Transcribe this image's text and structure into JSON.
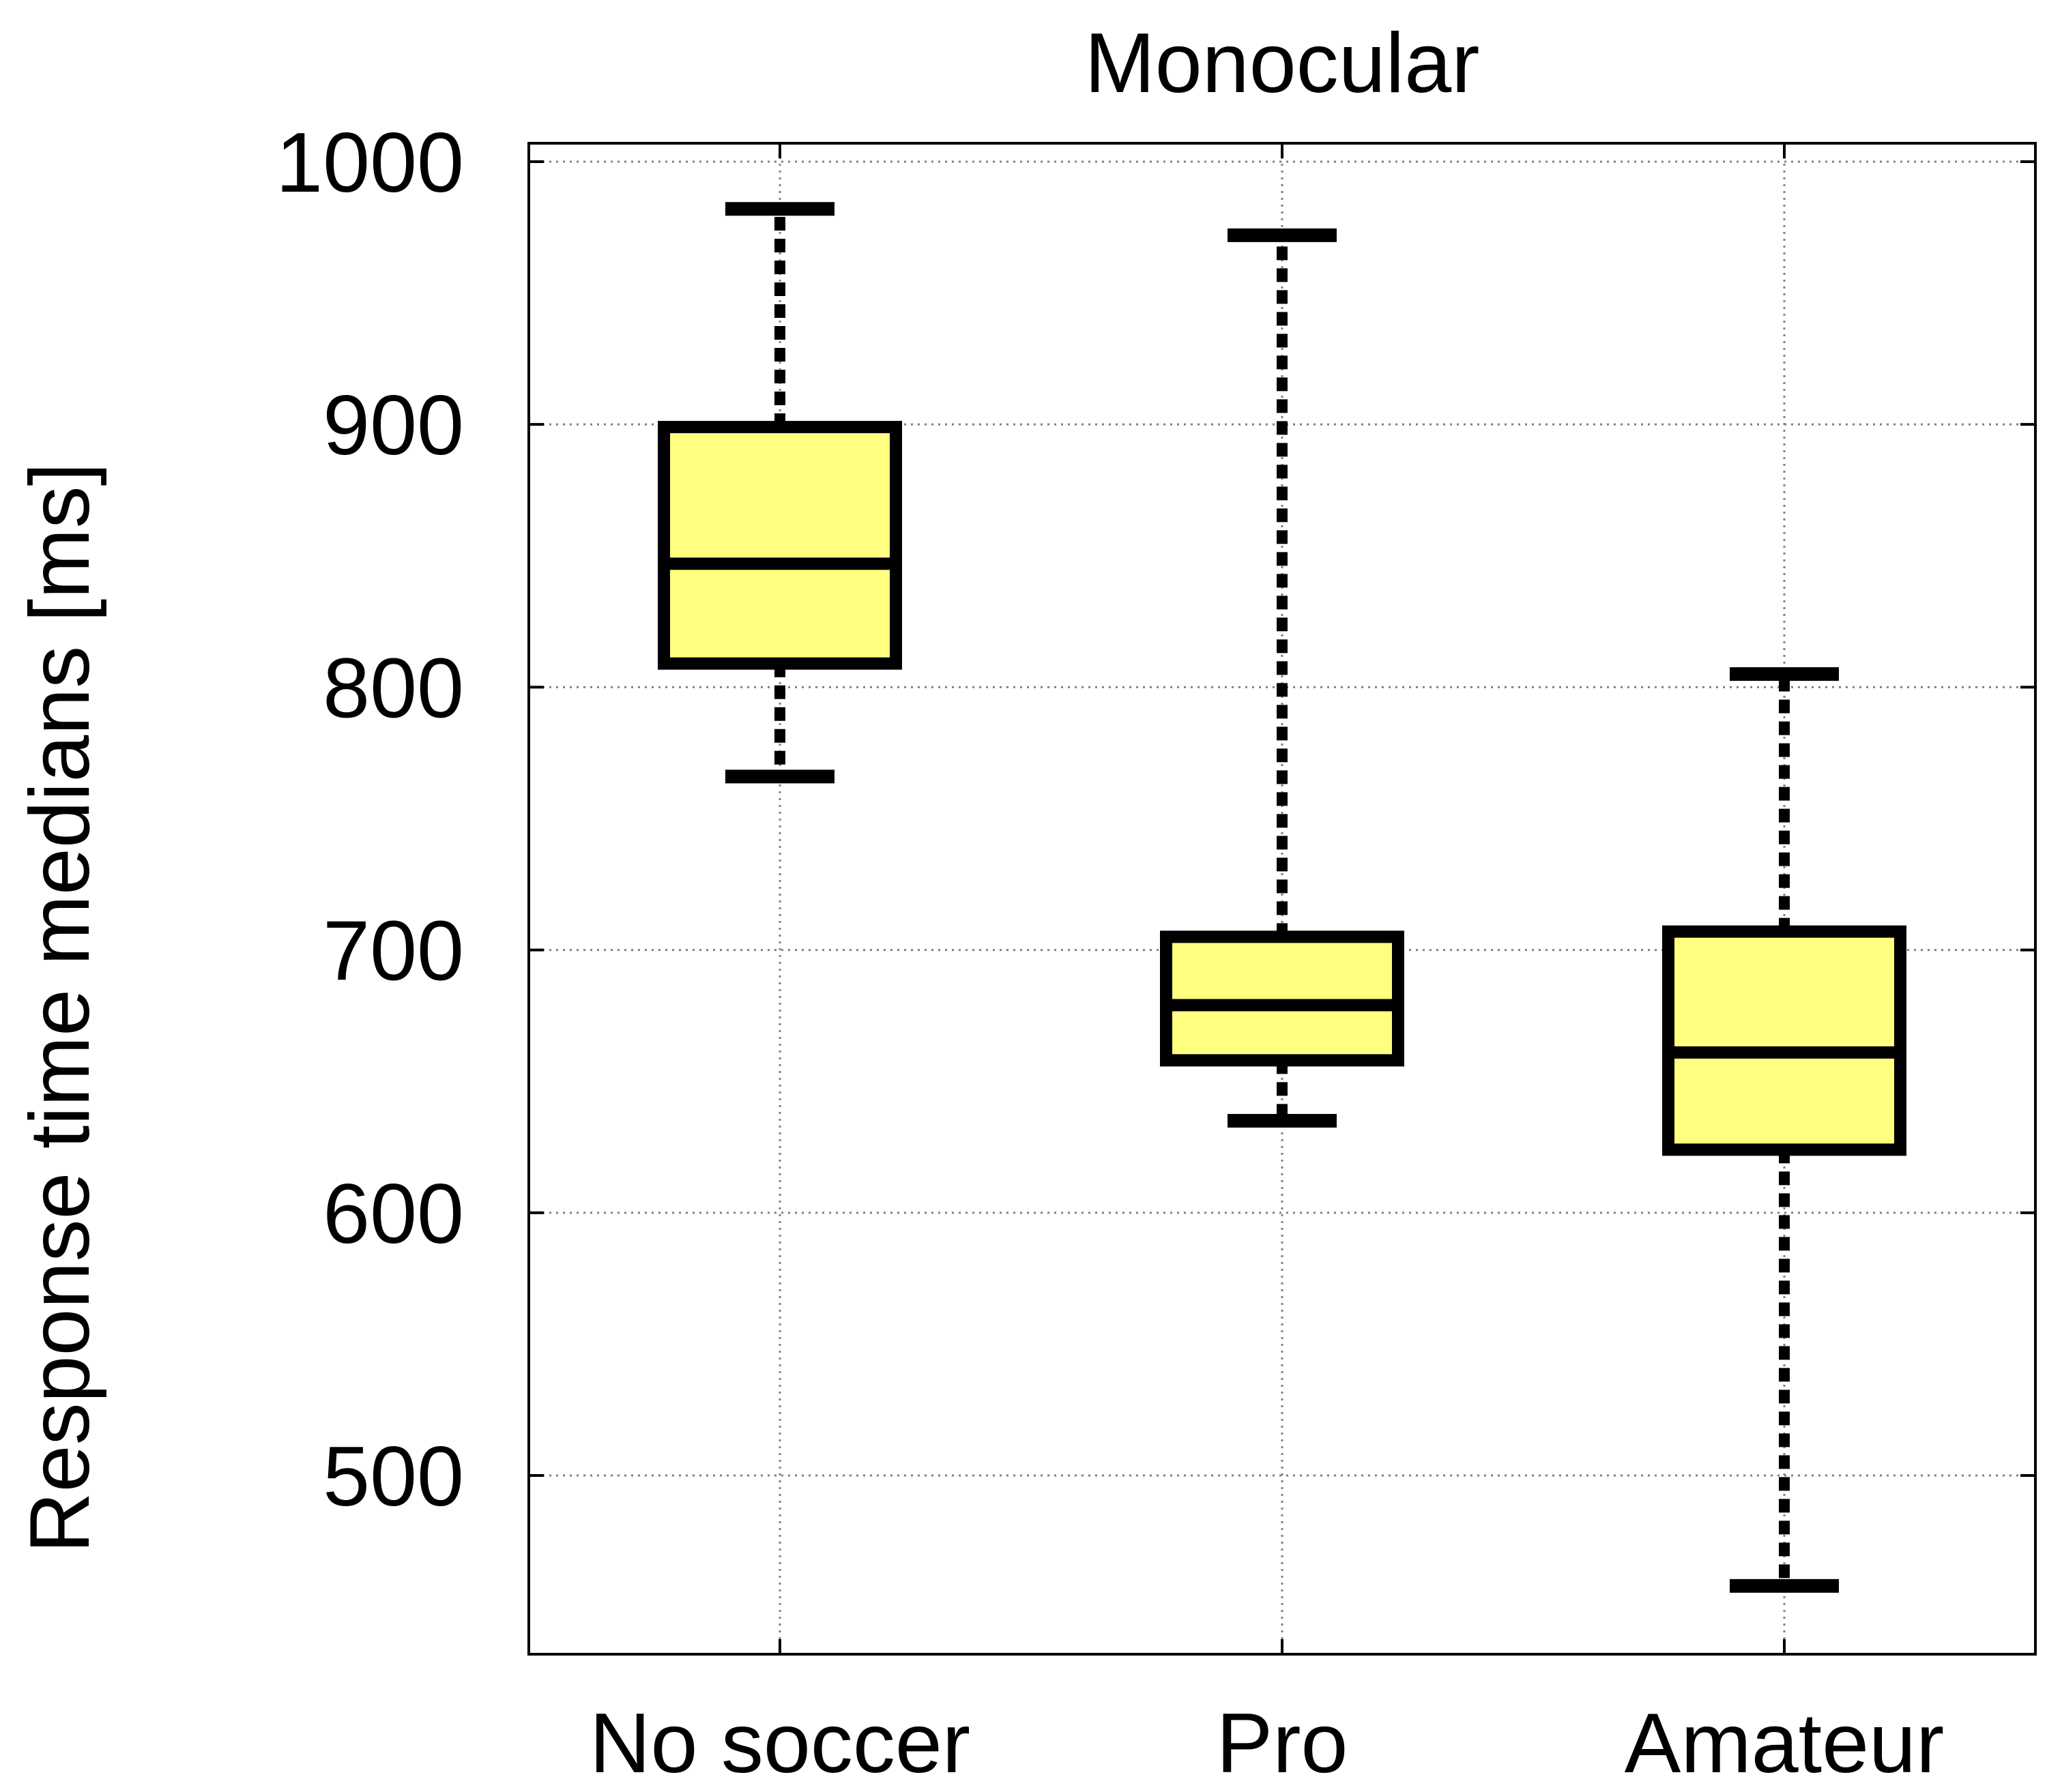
{
  "chart_data": {
    "type": "boxplot",
    "title": "Monocular",
    "xlabel": "",
    "ylabel": "Response time medians [ms]",
    "ylim": [
      432,
      1007
    ],
    "yticks": [
      500,
      600,
      700,
      800,
      900,
      1000
    ],
    "grid": true,
    "categories": [
      "No soccer",
      "Pro",
      "Amateur"
    ],
    "boxes": [
      {
        "whisker_low": 766,
        "q1": 809,
        "median": 847,
        "q3": 899,
        "whisker_high": 982
      },
      {
        "whisker_low": 635,
        "q1": 658,
        "median": 679,
        "q3": 705,
        "whisker_high": 972
      },
      {
        "whisker_low": 458,
        "q1": 624,
        "median": 661,
        "q3": 707,
        "whisker_high": 805
      }
    ],
    "colors": {
      "box_fill": "#ffff80",
      "stroke": "#000000",
      "grid": "#808080"
    }
  }
}
